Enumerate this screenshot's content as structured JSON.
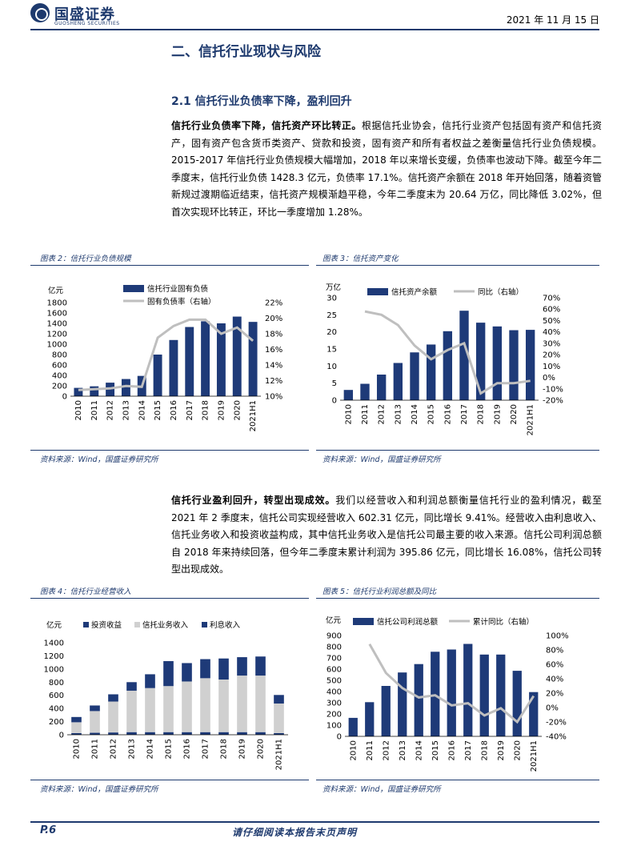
{
  "header": {
    "logo_cn": "国盛证券",
    "logo_en": "GUOSHENG SECURITIES",
    "date": "2021 年 11 月 15 日"
  },
  "section_title": "二、信托行业现状与风险",
  "sub_title": "2.1 信托行业负债率下降，盈利回升",
  "para1": {
    "lead": "信托行业负债率下降，信托资产环比转正。",
    "body": "根据信托业协会，信托行业资产包括固有资产和信托资产，固有资产包含货币类资产、贷款和投资，固有资产和所有者权益之差衡量信托行业负债规模。2015-2017 年信托行业负债规模大幅增加，2018 年以来增长变缓，负债率也波动下降。截至今年二季度末，信托行业负债 1428.3 亿元，负债率 17.1%。信托资产余额在 2018 年开始回落，随着资管新规过渡期临近结束，信托资产规模渐趋平稳，今年二季度末为 20.64 万亿，同比降低 3.02%，但首次实现环比转正，环比一季度增加 1.28%。"
  },
  "para2": {
    "lead": "信托行业盈利回升，转型出现成效。",
    "body": "我们以经营收入和利润总额衡量信托行业的盈利情况，截至 2021 年 2 季度末，信托公司实现经营收入 602.31 亿元，同比增长 9.41%。经营收入由利息收入、信托业务收入和投资收益构成，其中信托业务收入是信托公司最主要的收入来源。信托公司利润总额自 2018 年来持续回落，但今年二季度末累计利润为 395.86 亿元，同比增长 16.08%，信托公司转型出现成效。"
  },
  "figures": {
    "fig2_caption": "图表 2：信托行业负债规模",
    "fig3_caption": "图表 3：信托资产变化",
    "fig4_caption": "图表 4：信托行业经营收入",
    "fig5_caption": "图表 5：信托行业利润总额及同比",
    "source": "资料来源：Wind，国盛证券研究所"
  },
  "footer": {
    "page": "P.6",
    "note": "请仔细阅读本报告末页声明"
  },
  "colors": {
    "bar": "#1e3a78",
    "line": "#bfbfbf",
    "brand": "#1e3a6e"
  },
  "chart_data": [
    {
      "type": "bar",
      "ylabel": "亿元",
      "categories": [
        "2010",
        "2011",
        "2012",
        "2013",
        "2014",
        "2015",
        "2016",
        "2017",
        "2018",
        "2019",
        "2020",
        "2021H1"
      ],
      "series": [
        {
          "name": "信托行业固有负债",
          "axis": "left",
          "values": [
            160,
            190,
            260,
            330,
            390,
            800,
            1080,
            1330,
            1440,
            1400,
            1530,
            1428
          ]
        },
        {
          "name": "固有负债率（右轴）",
          "axis": "right",
          "type": "line",
          "values": [
            10.8,
            10.9,
            11.0,
            11.3,
            11.2,
            17.5,
            19.0,
            19.8,
            19.8,
            18.0,
            18.8,
            17.1
          ]
        }
      ],
      "ylim": [
        0,
        1800
      ],
      "yticks": [
        0,
        200,
        400,
        600,
        800,
        1000,
        1200,
        1400,
        1600,
        1800
      ],
      "y2lim": [
        10,
        22
      ],
      "y2ticks": [
        "10%",
        "12%",
        "14%",
        "16%",
        "18%",
        "20%",
        "22%"
      ]
    },
    {
      "type": "bar",
      "ylabel": "万亿",
      "categories": [
        "2010",
        "2011",
        "2012",
        "2013",
        "2014",
        "2015",
        "2016",
        "2017",
        "2018",
        "2019",
        "2020",
        "2021H1"
      ],
      "series": [
        {
          "name": "信托资产余额",
          "axis": "left",
          "values": [
            3.0,
            4.8,
            7.5,
            10.9,
            14.0,
            16.3,
            20.2,
            26.2,
            22.7,
            21.6,
            20.5,
            20.6
          ]
        },
        {
          "name": "同比（右轴）",
          "axis": "right",
          "type": "line",
          "values": [
            null,
            58,
            55,
            46,
            28,
            16,
            24,
            30,
            -14,
            -5,
            -5,
            -3
          ]
        }
      ],
      "ylim": [
        0,
        30
      ],
      "yticks": [
        0,
        5,
        10,
        15,
        20,
        25,
        30
      ],
      "y2lim": [
        -20,
        70
      ],
      "y2ticks": [
        "-20%",
        "-10%",
        "0%",
        "10%",
        "20%",
        "30%",
        "40%",
        "50%",
        "60%",
        "70%"
      ]
    },
    {
      "type": "bar",
      "stacked": true,
      "ylabel": "亿元",
      "categories": [
        "2010",
        "2011",
        "2012",
        "2013",
        "2014",
        "2015",
        "2016",
        "2017",
        "2018",
        "2019",
        "2020",
        "2021H1"
      ],
      "series": [
        {
          "name": "利息收入",
          "values": [
            25,
            30,
            35,
            40,
            40,
            40,
            40,
            40,
            40,
            40,
            40,
            25
          ]
        },
        {
          "name": "信托业务收入",
          "values": [
            165,
            330,
            470,
            630,
            670,
            700,
            770,
            820,
            800,
            860,
            860,
            450
          ]
        },
        {
          "name": "投资收益",
          "values": [
            80,
            85,
            110,
            130,
            210,
            380,
            280,
            290,
            320,
            280,
            290,
            130
          ]
        }
      ],
      "legend_order": [
        "投资收益",
        "信托业务收入",
        "利息收入"
      ],
      "ylim": [
        0,
        1400
      ],
      "yticks": [
        0,
        200,
        400,
        600,
        800,
        1000,
        1200,
        1400
      ]
    },
    {
      "type": "bar",
      "ylabel": "亿元",
      "categories": [
        "2010",
        "2011",
        "2012",
        "2013",
        "2014",
        "2015",
        "2016",
        "2017",
        "2018",
        "2019",
        "2020",
        "2021H1"
      ],
      "series": [
        {
          "name": "信托公司利润总额",
          "axis": "left",
          "values": [
            165,
            305,
            450,
            570,
            645,
            755,
            775,
            825,
            730,
            730,
            585,
            395
          ]
        },
        {
          "name": "累计同比（右轴）",
          "axis": "right",
          "type": "line",
          "values": [
            null,
            88,
            48,
            27,
            14,
            17,
            3,
            6,
            -11,
            -1,
            -20,
            16
          ]
        }
      ],
      "ylim": [
        0,
        900
      ],
      "yticks": [
        0,
        100,
        200,
        300,
        400,
        500,
        600,
        700,
        800,
        900
      ],
      "y2lim": [
        -40,
        100
      ],
      "y2ticks": [
        "-40%",
        "-20%",
        "0%",
        "20%",
        "40%",
        "60%",
        "80%",
        "100%"
      ]
    }
  ]
}
